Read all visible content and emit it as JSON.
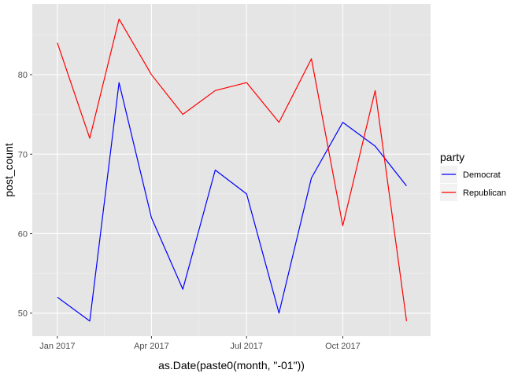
{
  "chart_data": {
    "type": "line",
    "xlabel": "as.Date(paste0(month, \"-01\"))",
    "ylabel": "post_count",
    "x": [
      "2017-01-01",
      "2017-02-01",
      "2017-03-01",
      "2017-04-01",
      "2017-05-01",
      "2017-06-01",
      "2017-07-01",
      "2017-08-01",
      "2017-09-01",
      "2017-10-01",
      "2017-11-01",
      "2017-12-01"
    ],
    "x_ticks": [
      {
        "date": "2017-01-01",
        "label": "Jan 2017"
      },
      {
        "date": "2017-04-01",
        "label": "Apr 2017"
      },
      {
        "date": "2017-07-01",
        "label": "Jul 2017"
      },
      {
        "date": "2017-10-01",
        "label": "Oct 2017"
      }
    ],
    "xlim": [
      "2016-12-08",
      "2017-12-24"
    ],
    "y_ticks": [
      50,
      60,
      70,
      80
    ],
    "ylim": [
      47.1,
      88.9
    ],
    "grid": true,
    "background": "#e5e5e5",
    "legend": {
      "title": "party",
      "position": "right"
    },
    "series": [
      {
        "name": "Democrat",
        "color": "#0000ff",
        "values": [
          52,
          49,
          79,
          62,
          53,
          68,
          65,
          50,
          67,
          74,
          71,
          66
        ]
      },
      {
        "name": "Republican",
        "color": "#ff0000",
        "values": [
          84,
          72,
          87,
          80,
          75,
          78,
          79,
          74,
          82,
          61,
          78,
          49
        ]
      }
    ]
  }
}
